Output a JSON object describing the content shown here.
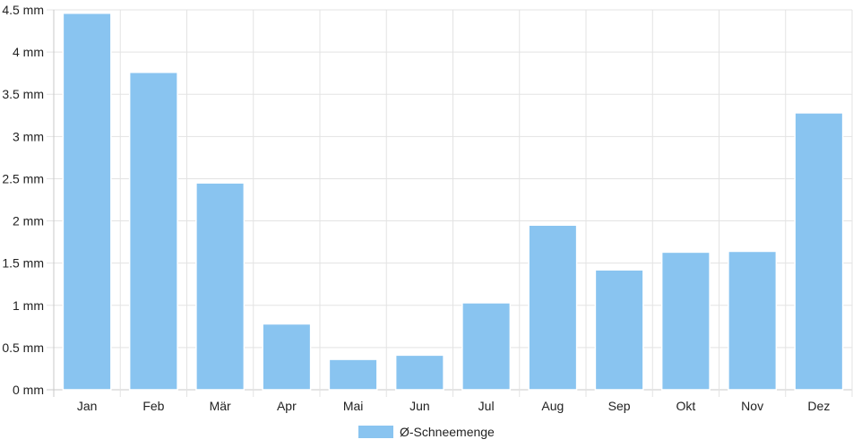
{
  "chart_data": {
    "type": "bar",
    "categories": [
      "Jan",
      "Feb",
      "Mär",
      "Apr",
      "Mai",
      "Jun",
      "Jul",
      "Aug",
      "Sep",
      "Okt",
      "Nov",
      "Dez"
    ],
    "series": [
      {
        "name": "Ø-Schneemenge",
        "values": [
          4.46,
          3.76,
          2.45,
          0.78,
          0.36,
          0.41,
          1.03,
          1.95,
          1.42,
          1.63,
          1.64,
          3.28
        ]
      }
    ],
    "y_ticks": [
      "0 mm",
      "0.5 mm",
      "1 mm",
      "1.5 mm",
      "2 mm",
      "2.5 mm",
      "3 mm",
      "3.5 mm",
      "4 mm",
      "4.5 mm"
    ],
    "ylim": [
      0,
      4.5
    ],
    "unit": "mm",
    "grid": true,
    "legend_position": "bottom",
    "colors": {
      "bar": "#89c4f0",
      "grid": "#e3e3e3",
      "axis": "#c8c8c8"
    }
  }
}
